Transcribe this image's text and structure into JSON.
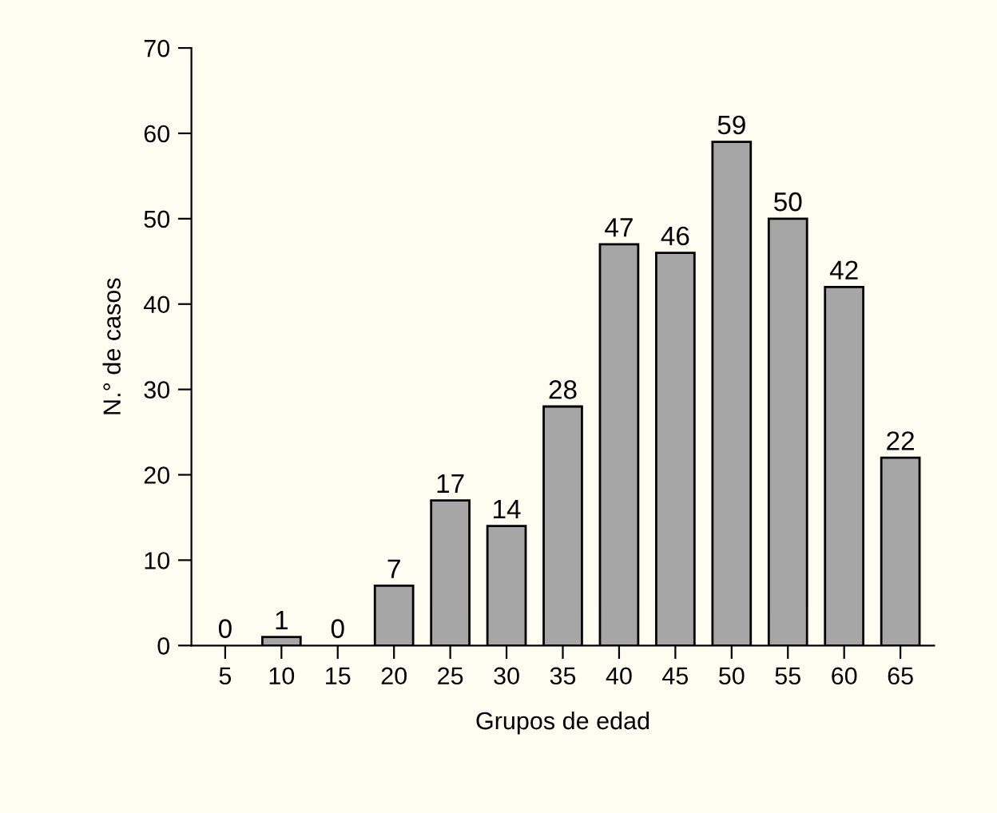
{
  "chart_data": {
    "type": "bar",
    "xlabel": "Grupos de edad",
    "ylabel": "N.° de casos",
    "categories": [
      "5",
      "10",
      "15",
      "20",
      "25",
      "30",
      "35",
      "40",
      "45",
      "50",
      "55",
      "60",
      "65"
    ],
    "values": [
      0,
      1,
      0,
      7,
      17,
      14,
      28,
      47,
      46,
      59,
      50,
      42,
      22
    ],
    "color": "#a6a6a6",
    "ylim": [
      0,
      70
    ],
    "yticks": [
      0,
      10,
      20,
      30,
      40,
      50,
      60,
      70
    ],
    "data_labels": true,
    "grid": false,
    "legend": false
  }
}
